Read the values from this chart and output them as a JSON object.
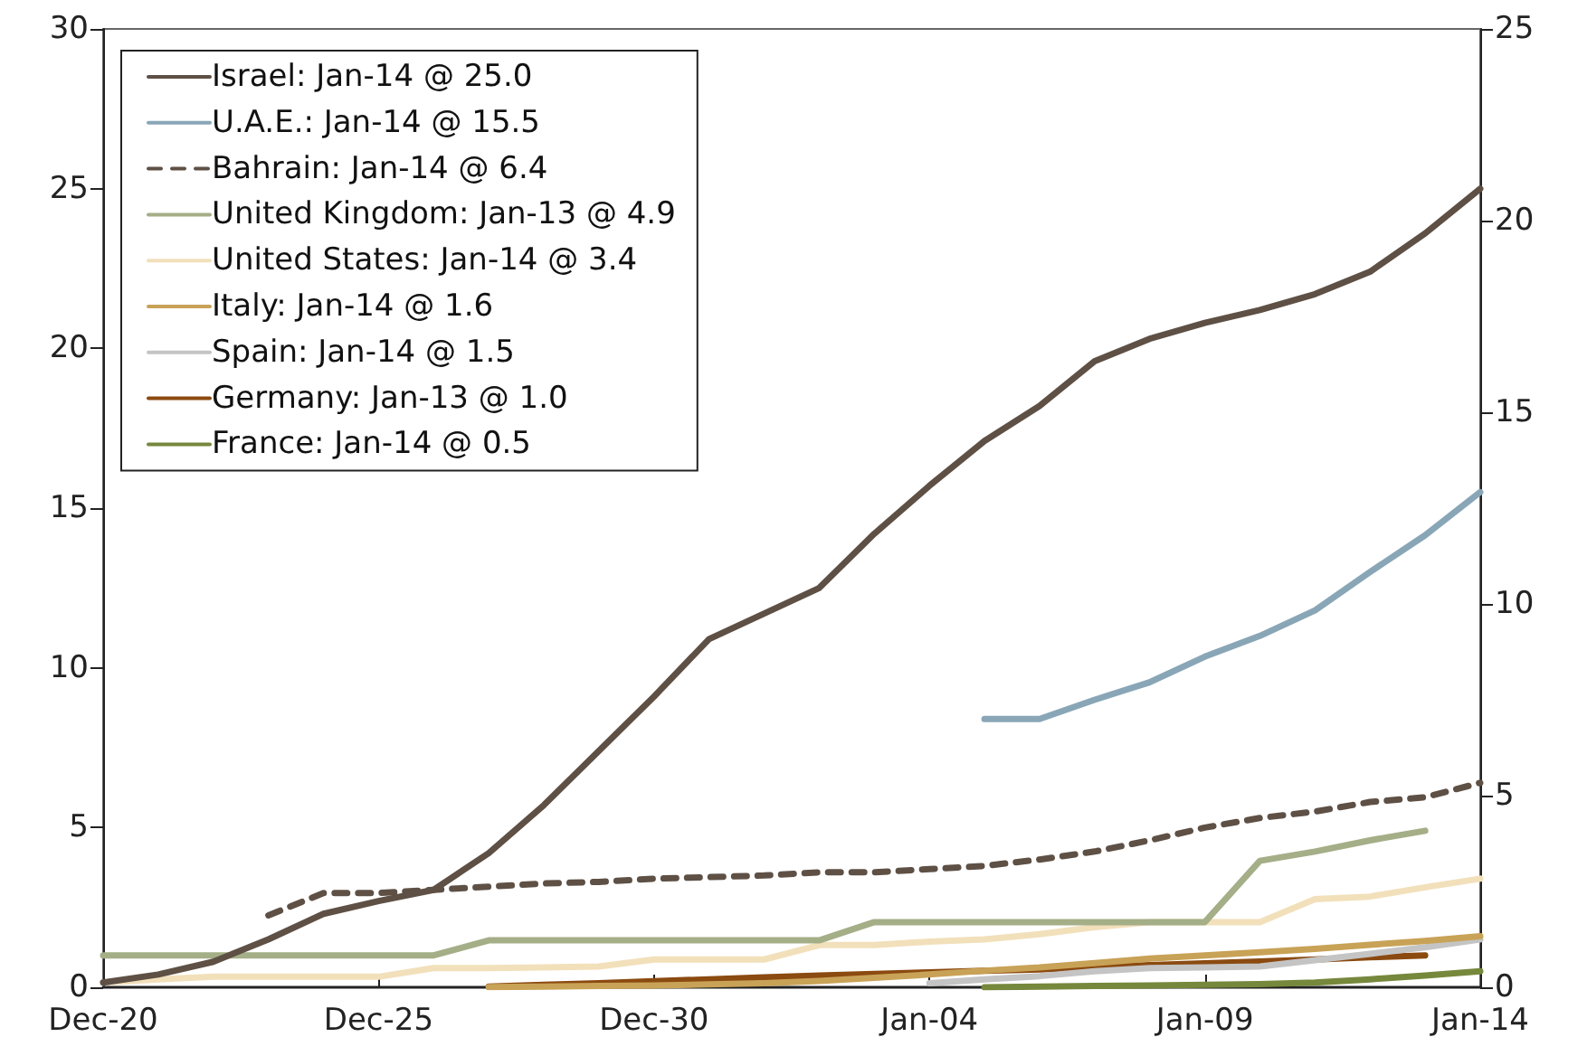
{
  "chart_data": {
    "type": "line",
    "categories": [
      "Dec-20",
      null,
      null,
      null,
      null,
      "Dec-25",
      null,
      null,
      null,
      null,
      "Dec-30",
      null,
      null,
      null,
      null,
      "Jan-04",
      null,
      null,
      null,
      null,
      "Jan-09",
      null,
      null,
      null,
      null,
      "Jan-14"
    ],
    "ylim": [
      0,
      30
    ],
    "yticks": [
      0,
      5,
      10,
      15,
      20,
      25,
      30
    ],
    "y2lim": [
      0,
      25
    ],
    "y2ticks": [
      0,
      5,
      10,
      15,
      20,
      25
    ],
    "grid": false,
    "legend": "top left",
    "marker": "none",
    "line_style": "solid",
    "series": [
      {
        "name": "Israel: Jan-14 @ 25.0",
        "color": "#5e5045",
        "values": [
          0.15,
          0.4,
          0.8,
          1.5,
          2.3,
          2.7,
          3.05,
          4.2,
          5.7,
          7.4,
          9.1,
          10.9,
          11.7,
          12.5,
          14.2,
          15.7,
          17.1,
          18.2,
          19.6,
          20.3,
          20.8,
          21.2,
          21.7,
          22.4,
          23.6,
          25.0
        ]
      },
      {
        "name": "U.A.E.: Jan-14 @ 15.5",
        "color": "#89a6b7",
        "values": [
          null,
          null,
          null,
          null,
          null,
          null,
          null,
          null,
          null,
          null,
          null,
          null,
          null,
          null,
          null,
          null,
          8.4,
          8.4,
          9.0,
          9.55,
          10.35,
          11.0,
          11.8,
          13.0,
          14.15,
          15.5
        ]
      },
      {
        "name": "Bahrain: Jan-14 @ 6.4",
        "color": "#5e5045",
        "line_style": "dashed",
        "values": [
          null,
          null,
          null,
          2.25,
          2.95,
          2.95,
          3.05,
          3.15,
          3.25,
          3.3,
          3.4,
          3.45,
          3.5,
          3.6,
          3.6,
          3.7,
          3.8,
          4.0,
          4.25,
          4.6,
          5.0,
          5.3,
          5.5,
          5.8,
          5.95,
          6.4
        ]
      },
      {
        "name": "United Kingdom: Jan-13 @ 4.9",
        "color": "#a4ae87",
        "values": [
          1.0,
          1.0,
          1.0,
          1.0,
          1.0,
          1.0,
          1.0,
          1.47,
          1.47,
          1.47,
          1.47,
          1.47,
          1.47,
          1.47,
          2.04,
          2.04,
          2.04,
          2.04,
          2.04,
          2.04,
          2.04,
          3.96,
          4.25,
          4.6,
          4.9,
          null
        ]
      },
      {
        "name": "United States: Jan-14 @ 3.4",
        "color": "#f2e0bb",
        "values": [
          0.15,
          0.25,
          0.33,
          0.33,
          0.33,
          0.33,
          0.6,
          0.6,
          0.62,
          0.65,
          0.87,
          0.87,
          0.87,
          1.32,
          1.32,
          1.43,
          1.5,
          1.66,
          1.88,
          2.04,
          2.04,
          2.04,
          2.76,
          2.84,
          3.13,
          3.4
        ]
      },
      {
        "name": "Italy: Jan-14 @ 1.6",
        "color": "#c8a256",
        "values": [
          null,
          null,
          null,
          null,
          null,
          null,
          null,
          0.01,
          0.02,
          0.04,
          0.06,
          0.09,
          0.13,
          0.2,
          0.3,
          0.4,
          0.52,
          0.62,
          0.76,
          0.9,
          1.0,
          1.1,
          1.2,
          1.33,
          1.45,
          1.6
        ]
      },
      {
        "name": "Spain: Jan-14 @ 1.5",
        "color": "#c4c4c4",
        "values": [
          null,
          null,
          null,
          null,
          null,
          null,
          null,
          null,
          null,
          null,
          null,
          null,
          null,
          null,
          null,
          0.13,
          0.25,
          0.35,
          0.5,
          0.6,
          0.62,
          0.65,
          0.85,
          1.05,
          1.25,
          1.5
        ]
      },
      {
        "name": "Germany: Jan-13 @ 1.0",
        "color": "#8b4a10",
        "values": [
          null,
          null,
          null,
          null,
          null,
          null,
          null,
          0.02,
          0.08,
          0.13,
          0.19,
          0.25,
          0.31,
          0.37,
          0.42,
          0.47,
          0.52,
          0.56,
          0.63,
          0.69,
          0.75,
          0.81,
          0.87,
          0.94,
          1.0,
          null
        ]
      },
      {
        "name": "France: Jan-14 @ 0.5",
        "color": "#76883c",
        "values": [
          null,
          null,
          null,
          null,
          null,
          null,
          null,
          null,
          null,
          null,
          null,
          null,
          null,
          null,
          null,
          null,
          0.0,
          0.02,
          0.04,
          0.06,
          0.08,
          0.1,
          0.15,
          0.25,
          0.37,
          0.5
        ]
      }
    ]
  }
}
